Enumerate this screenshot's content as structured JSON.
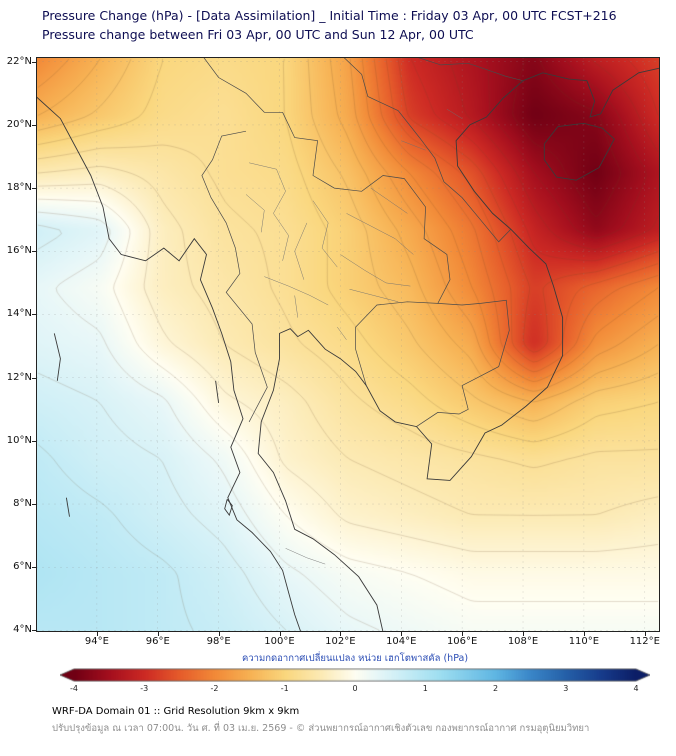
{
  "chart_data": {
    "type": "heatmap",
    "title": "Pressure Change (hPa) - [Data Assimilation] _ Initial Time : Friday 03 Apr, 00 UTC FCST+216",
    "subtitle": "Pressure change between Fri 03 Apr, 00 UTC and Sun 12 Apr, 00 UTC",
    "units": "hPa",
    "lon_range": [
      92.0,
      112.5
    ],
    "lat_range": [
      3.95,
      22.15
    ],
    "x_axis": {
      "ticks": [
        94,
        96,
        98,
        100,
        102,
        104,
        106,
        108,
        110,
        112
      ],
      "labels": [
        "94°E",
        "96°E",
        "98°E",
        "100°E",
        "102°E",
        "104°E",
        "106°E",
        "108°E",
        "110°E",
        "112°E"
      ]
    },
    "y_axis": {
      "ticks": [
        22,
        20,
        18,
        16,
        14,
        12,
        10,
        8,
        6,
        4
      ],
      "labels": [
        "22°N",
        "20°N",
        "18°N",
        "16°N",
        "14°N",
        "12°N",
        "10°N",
        "8°N",
        "6°N",
        "4°N"
      ]
    },
    "grid_lons": [
      92.0,
      94.05,
      96.1,
      98.15,
      100.2,
      102.25,
      104.3,
      106.35,
      108.4,
      110.45,
      112.5
    ],
    "grid_lats": [
      22.15,
      20.33,
      18.51,
      16.69,
      14.87,
      13.05,
      11.23,
      9.41,
      7.59,
      5.77,
      3.95
    ],
    "values_hpa": [
      [
        -2.0,
        -1.5,
        -1.0,
        -0.9,
        -1.0,
        -1.7,
        -3.0,
        -3.4,
        -3.8,
        -3.2,
        -2.8
      ],
      [
        -1.5,
        -1.2,
        -0.9,
        -0.8,
        -1.0,
        -1.6,
        -2.8,
        -3.3,
        -4.0,
        -3.8,
        -3.0
      ],
      [
        -0.5,
        -0.4,
        -0.6,
        -0.8,
        -0.9,
        -1.3,
        -2.0,
        -2.6,
        -3.5,
        -4.0,
        -3.4
      ],
      [
        0.6,
        0.4,
        -0.4,
        -0.7,
        -0.8,
        -1.1,
        -1.6,
        -2.2,
        -3.1,
        -3.7,
        -3.2
      ],
      [
        0.3,
        0.1,
        -0.4,
        -0.6,
        -0.8,
        -1.1,
        -1.4,
        -2.0,
        -2.8,
        -2.4,
        -2.0
      ],
      [
        0.4,
        0.3,
        -0.2,
        -0.5,
        -0.7,
        -0.9,
        -1.2,
        -1.6,
        -3.0,
        -1.9,
        -1.5
      ],
      [
        0.6,
        0.5,
        0.3,
        -0.2,
        -0.4,
        -0.7,
        -0.9,
        -1.2,
        -1.5,
        -1.1,
        -1.0
      ],
      [
        0.8,
        0.6,
        0.5,
        0.2,
        -0.3,
        -0.5,
        -0.6,
        -0.7,
        -0.8,
        -0.7,
        -0.7
      ],
      [
        0.9,
        0.8,
        0.6,
        0.4,
        0.0,
        -0.3,
        -0.4,
        -0.5,
        -0.5,
        -0.5,
        -0.4
      ],
      [
        1.0,
        0.9,
        0.8,
        0.6,
        0.3,
        0.1,
        0.0,
        -0.1,
        -0.1,
        -0.1,
        -0.1
      ],
      [
        0.9,
        0.9,
        0.8,
        0.7,
        0.5,
        0.3,
        0.2,
        0.1,
        0.1,
        0.1,
        0.1
      ]
    ],
    "colorbar": {
      "label": "ความกดอากาศเปลี่ยนแปลง หน่วย เฮกโตพาสคัล (hPa)",
      "min": -4,
      "max": 4,
      "tick_values": [
        -4,
        -3,
        -2,
        -1,
        0,
        1,
        2,
        3,
        4
      ],
      "tick_labels": [
        "-4",
        "-3",
        "-2",
        "-1",
        "0",
        "1",
        "2",
        "3",
        "4"
      ],
      "stops": [
        [
          -4.0,
          "#700014"
        ],
        [
          -3.5,
          "#a50f1e"
        ],
        [
          -3.0,
          "#cd2a24"
        ],
        [
          -2.5,
          "#e65c2b"
        ],
        [
          -2.0,
          "#f28a38"
        ],
        [
          -1.5,
          "#f7b254"
        ],
        [
          -1.0,
          "#fad77e"
        ],
        [
          -0.5,
          "#fceab4"
        ],
        [
          0.0,
          "#fffef2"
        ],
        [
          0.3,
          "#e8f7f8"
        ],
        [
          0.7,
          "#c8edf6"
        ],
        [
          1.2,
          "#9fdff1"
        ],
        [
          2.0,
          "#5fb6e3"
        ],
        [
          2.5,
          "#3a86c8"
        ],
        [
          3.0,
          "#2560a8"
        ],
        [
          3.5,
          "#173c8c"
        ],
        [
          4.0,
          "#0c1e66"
        ]
      ]
    },
    "map_outlines": {
      "coastlines": [
        [
          [
            92.0,
            20.9
          ],
          [
            92.8,
            20.2
          ],
          [
            93.3,
            19.3
          ],
          [
            93.8,
            18.4
          ],
          [
            94.2,
            17.4
          ],
          [
            94.4,
            16.4
          ],
          [
            94.8,
            15.9
          ],
          [
            95.6,
            15.7
          ],
          [
            96.2,
            16.1
          ],
          [
            96.7,
            15.7
          ],
          [
            97.2,
            16.4
          ],
          [
            97.6,
            15.9
          ],
          [
            97.4,
            15.1
          ],
          [
            97.8,
            14.2
          ],
          [
            98.1,
            13.4
          ],
          [
            98.4,
            12.5
          ],
          [
            98.5,
            11.6
          ],
          [
            98.8,
            10.7
          ],
          [
            98.4,
            9.8
          ],
          [
            98.7,
            9.0
          ],
          [
            98.3,
            8.2
          ],
          [
            98.6,
            7.5
          ],
          [
            99.1,
            7.1
          ],
          [
            99.7,
            6.5
          ],
          [
            100.1,
            5.9
          ],
          [
            100.3,
            5.2
          ],
          [
            100.5,
            4.5
          ],
          [
            100.7,
            3.95
          ]
        ],
        [
          [
            103.4,
            3.95
          ],
          [
            103.2,
            4.8
          ],
          [
            102.6,
            5.7
          ],
          [
            101.8,
            6.4
          ],
          [
            101.1,
            6.9
          ],
          [
            100.5,
            7.2
          ],
          [
            100.2,
            8.1
          ],
          [
            99.8,
            9.0
          ],
          [
            99.3,
            9.6
          ],
          [
            99.4,
            10.6
          ],
          [
            99.8,
            11.6
          ],
          [
            100.0,
            12.6
          ],
          [
            100.0,
            13.4
          ],
          [
            100.35,
            13.55
          ],
          [
            100.6,
            13.3
          ],
          [
            100.95,
            13.5
          ],
          [
            101.5,
            12.9
          ],
          [
            102.0,
            12.6
          ],
          [
            102.5,
            12.2
          ],
          [
            102.85,
            11.75
          ],
          [
            103.3,
            10.95
          ],
          [
            103.8,
            10.6
          ],
          [
            104.5,
            10.45
          ],
          [
            105.0,
            9.9
          ],
          [
            104.85,
            8.8
          ],
          [
            105.6,
            8.75
          ],
          [
            106.3,
            9.5
          ],
          [
            106.75,
            10.25
          ],
          [
            107.3,
            10.5
          ],
          [
            108.1,
            11.1
          ],
          [
            108.8,
            11.7
          ],
          [
            109.3,
            12.7
          ],
          [
            109.3,
            13.9
          ],
          [
            109.0,
            14.9
          ],
          [
            108.75,
            15.6
          ],
          [
            108.2,
            16.1
          ],
          [
            107.6,
            16.7
          ],
          [
            107.0,
            17.2
          ],
          [
            106.4,
            17.9
          ],
          [
            105.85,
            18.7
          ],
          [
            105.8,
            19.5
          ],
          [
            106.25,
            20.0
          ],
          [
            106.8,
            20.25
          ],
          [
            107.35,
            20.85
          ],
          [
            108.0,
            21.4
          ],
          [
            108.65,
            21.65
          ],
          [
            109.5,
            21.45
          ],
          [
            110.1,
            21.4
          ],
          [
            110.35,
            20.75
          ],
          [
            110.2,
            20.25
          ],
          [
            110.55,
            20.35
          ],
          [
            110.95,
            21.1
          ],
          [
            111.8,
            21.65
          ],
          [
            112.5,
            21.8
          ]
        ]
      ],
      "islands": [
        [
          [
            108.7,
            19.4
          ],
          [
            109.15,
            19.95
          ],
          [
            110.0,
            20.05
          ],
          [
            110.6,
            19.9
          ],
          [
            111.0,
            19.55
          ],
          [
            110.5,
            18.65
          ],
          [
            109.75,
            18.25
          ],
          [
            109.1,
            18.35
          ],
          [
            108.7,
            18.9
          ],
          [
            108.7,
            19.4
          ]
        ],
        [
          [
            98.28,
            8.15
          ],
          [
            98.2,
            7.85
          ],
          [
            98.35,
            7.65
          ],
          [
            98.45,
            7.95
          ],
          [
            98.28,
            8.15
          ]
        ],
        [
          [
            92.6,
            13.4
          ],
          [
            92.8,
            12.6
          ],
          [
            92.7,
            11.9
          ]
        ],
        [
          [
            93.0,
            8.2
          ],
          [
            93.1,
            7.6
          ]
        ],
        [
          [
            97.9,
            11.9
          ],
          [
            98.0,
            11.2
          ]
        ]
      ],
      "borders": [
        [
          [
            98.9,
            19.8
          ],
          [
            98.1,
            19.65
          ],
          [
            97.8,
            18.9
          ],
          [
            97.45,
            18.4
          ],
          [
            97.75,
            17.7
          ],
          [
            98.25,
            16.9
          ],
          [
            98.55,
            16.1
          ],
          [
            98.7,
            15.3
          ],
          [
            98.25,
            14.7
          ],
          [
            99.1,
            13.7
          ],
          [
            99.2,
            12.8
          ],
          [
            99.6,
            11.7
          ],
          [
            99.0,
            10.6
          ]
        ],
        [
          [
            100.1,
            20.4
          ],
          [
            100.5,
            19.6
          ],
          [
            101.25,
            19.5
          ],
          [
            101.1,
            18.4
          ],
          [
            101.8,
            18.0
          ],
          [
            102.7,
            17.9
          ],
          [
            103.4,
            18.4
          ],
          [
            104.1,
            18.3
          ],
          [
            104.8,
            17.4
          ],
          [
            104.75,
            16.4
          ],
          [
            105.5,
            15.9
          ],
          [
            105.6,
            15.1
          ],
          [
            105.2,
            14.35
          ],
          [
            104.2,
            14.4
          ],
          [
            103.2,
            14.3
          ],
          [
            102.5,
            13.6
          ],
          [
            102.5,
            12.9
          ],
          [
            102.85,
            11.75
          ]
        ],
        [
          [
            102.1,
            22.15
          ],
          [
            102.7,
            21.6
          ],
          [
            102.9,
            20.9
          ],
          [
            103.9,
            20.45
          ],
          [
            104.6,
            19.6
          ],
          [
            105.1,
            18.95
          ],
          [
            105.4,
            18.2
          ],
          [
            106.0,
            17.7
          ],
          [
            106.6,
            17.0
          ],
          [
            107.2,
            16.3
          ],
          [
            107.6,
            16.7
          ]
        ],
        [
          [
            104.5,
            22.15
          ],
          [
            105.3,
            21.9
          ],
          [
            106.2,
            21.95
          ],
          [
            106.8,
            21.75
          ],
          [
            107.4,
            21.55
          ],
          [
            108.0,
            21.4
          ]
        ],
        [
          [
            104.5,
            10.45
          ],
          [
            105.2,
            10.9
          ],
          [
            105.9,
            10.85
          ],
          [
            106.2,
            11.0
          ],
          [
            106.0,
            11.75
          ],
          [
            106.5,
            12.0
          ],
          [
            107.2,
            12.35
          ],
          [
            107.55,
            13.5
          ],
          [
            107.45,
            14.45
          ],
          [
            106.6,
            14.35
          ],
          [
            106.0,
            14.3
          ],
          [
            105.2,
            14.35
          ]
        ],
        [
          [
            97.5,
            22.15
          ],
          [
            98.0,
            21.5
          ],
          [
            98.9,
            21.0
          ],
          [
            99.5,
            20.4
          ],
          [
            100.1,
            20.4
          ]
        ]
      ],
      "admin_lines": [
        [
          [
            99.0,
            18.8
          ],
          [
            99.9,
            18.6
          ],
          [
            100.2,
            17.9
          ],
          [
            99.8,
            17.2
          ],
          [
            100.3,
            16.5
          ],
          [
            100.1,
            15.7
          ]
        ],
        [
          [
            101.1,
            17.6
          ],
          [
            101.6,
            16.9
          ],
          [
            101.4,
            16.1
          ],
          [
            101.9,
            15.5
          ]
        ],
        [
          [
            99.5,
            15.2
          ],
          [
            100.3,
            14.9
          ],
          [
            101.0,
            14.6
          ],
          [
            101.6,
            14.3
          ]
        ],
        [
          [
            102.2,
            17.2
          ],
          [
            103.0,
            16.8
          ],
          [
            103.8,
            16.4
          ],
          [
            104.4,
            15.9
          ]
        ],
        [
          [
            102.0,
            15.9
          ],
          [
            102.8,
            15.4
          ],
          [
            103.5,
            15.0
          ],
          [
            104.3,
            14.9
          ]
        ],
        [
          [
            100.9,
            16.9
          ],
          [
            100.5,
            16.0
          ],
          [
            100.8,
            15.1
          ]
        ],
        [
          [
            98.9,
            17.8
          ],
          [
            99.5,
            17.3
          ],
          [
            99.4,
            16.6
          ]
        ],
        [
          [
            102.3,
            14.8
          ],
          [
            103.1,
            14.6
          ],
          [
            103.9,
            14.4
          ]
        ],
        [
          [
            100.2,
            6.6
          ],
          [
            100.9,
            6.3
          ],
          [
            101.5,
            6.1
          ]
        ],
        [
          [
            103.0,
            18.0
          ],
          [
            103.6,
            17.6
          ],
          [
            104.2,
            17.2
          ]
        ],
        [
          [
            100.5,
            14.6
          ],
          [
            100.6,
            13.9
          ]
        ],
        [
          [
            101.9,
            13.6
          ],
          [
            102.2,
            13.2
          ]
        ],
        [
          [
            105.5,
            20.5
          ],
          [
            106.0,
            20.2
          ]
        ],
        [
          [
            104.0,
            19.5
          ],
          [
            104.8,
            19.2
          ]
        ]
      ]
    }
  },
  "footer": {
    "line1": "WRF-DA Domain 01 :: Grid Resolution 9km x 9km",
    "line2": "ปรับปรุงข้อมูล ณ เวลา 07:00น. วัน ศ. ที่ 03 เม.ย. 2569 - © ส่วนพยากรณ์อากาศเชิงตัวเลข กองพยากรณ์อากาศ กรมอุตุนิยมวิทยา"
  }
}
